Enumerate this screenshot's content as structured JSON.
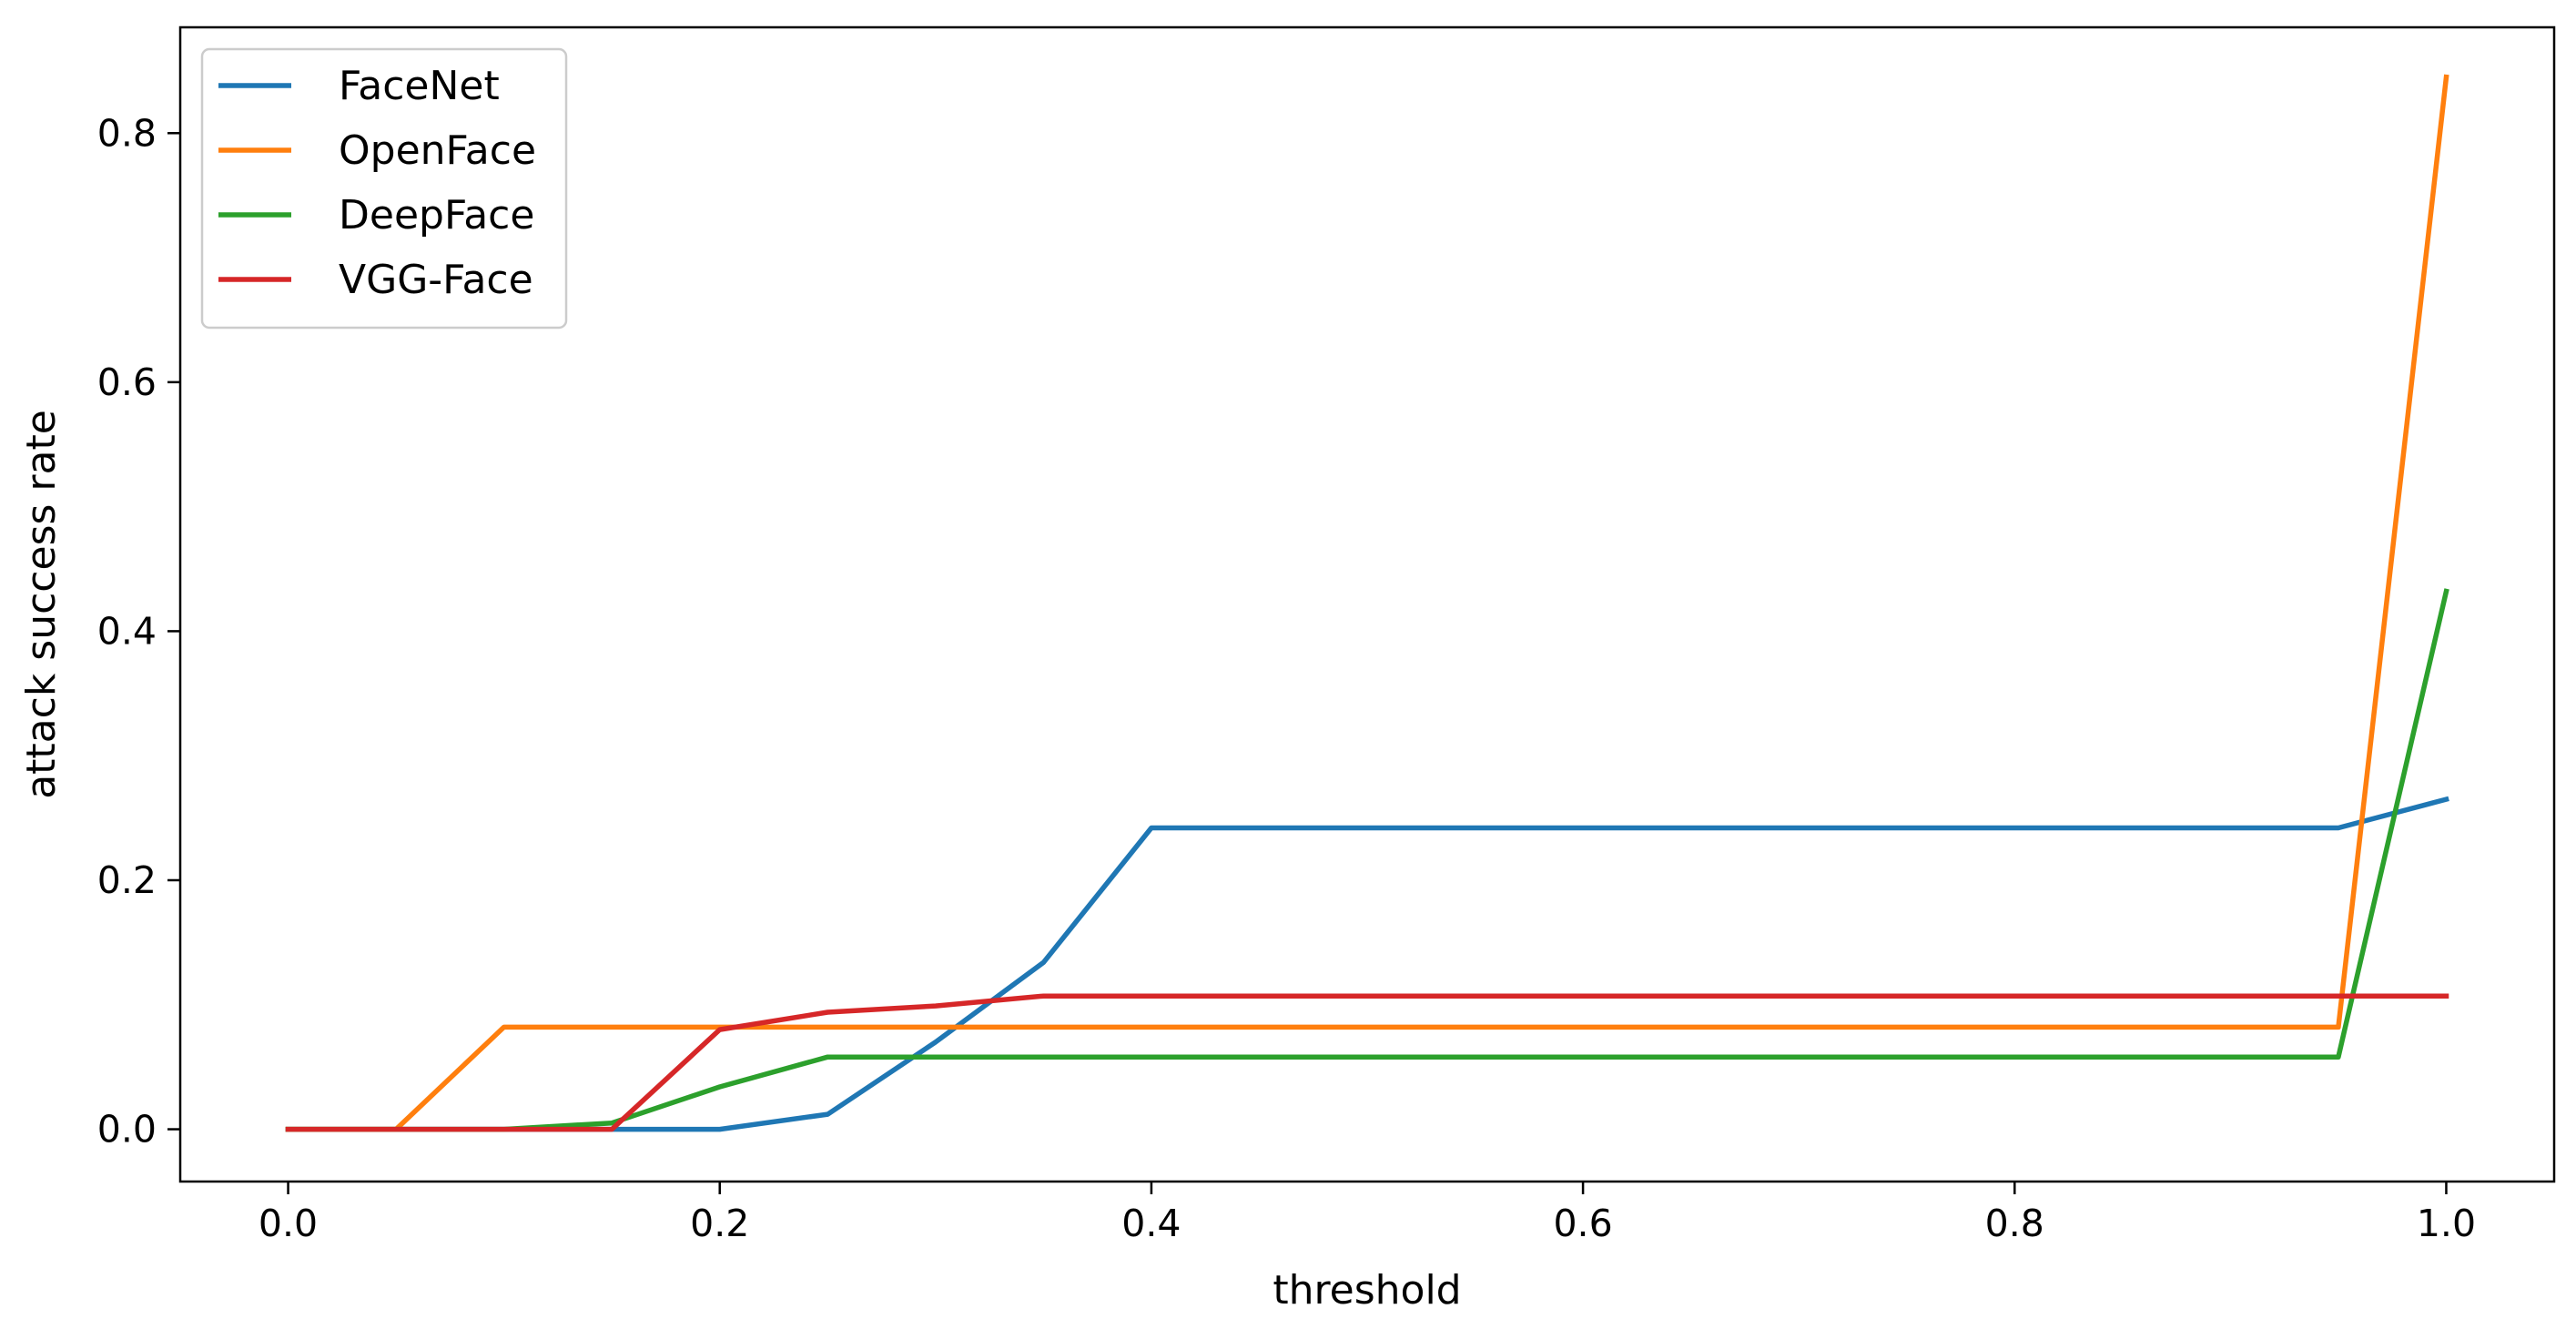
{
  "chart_data": {
    "type": "line",
    "xlabel": "threshold",
    "ylabel": "attack success rate",
    "title": "",
    "xlim": [
      -0.05,
      1.05
    ],
    "ylim": [
      -0.042,
      0.885
    ],
    "xticks": [
      0.0,
      0.2,
      0.4,
      0.6,
      0.8,
      1.0
    ],
    "xtick_labels": [
      "0.0",
      "0.2",
      "0.4",
      "0.6",
      "0.8",
      "1.0"
    ],
    "yticks": [
      0.0,
      0.2,
      0.4,
      0.6,
      0.8
    ],
    "ytick_labels": [
      "0.0",
      "0.2",
      "0.4",
      "0.6",
      "0.8"
    ],
    "grid": false,
    "legend_position": "top-left",
    "x": [
      0.0,
      0.05,
      0.1,
      0.15,
      0.2,
      0.25,
      0.3,
      0.35,
      0.4,
      0.45,
      0.5,
      0.55,
      0.6,
      0.65,
      0.7,
      0.75,
      0.8,
      0.85,
      0.9,
      0.95,
      1.0
    ],
    "series": [
      {
        "name": "FaceNet",
        "color": "#1f77b4",
        "values": [
          0.0,
          0.0,
          0.0,
          0.0,
          0.0,
          0.012,
          0.07,
          0.134,
          0.242,
          0.242,
          0.242,
          0.242,
          0.242,
          0.242,
          0.242,
          0.242,
          0.242,
          0.242,
          0.242,
          0.242,
          0.265
        ]
      },
      {
        "name": "OpenFace",
        "color": "#ff7f0e",
        "values": [
          0.0,
          0.0,
          0.082,
          0.082,
          0.082,
          0.082,
          0.082,
          0.082,
          0.082,
          0.082,
          0.082,
          0.082,
          0.082,
          0.082,
          0.082,
          0.082,
          0.082,
          0.082,
          0.082,
          0.082,
          0.845
        ]
      },
      {
        "name": "DeepFace",
        "color": "#2ca02c",
        "values": [
          0.0,
          0.0,
          0.0,
          0.005,
          0.034,
          0.058,
          0.058,
          0.058,
          0.058,
          0.058,
          0.058,
          0.058,
          0.058,
          0.058,
          0.058,
          0.058,
          0.058,
          0.058,
          0.058,
          0.058,
          0.432
        ]
      },
      {
        "name": "VGG-Face",
        "color": "#d62728",
        "values": [
          0.0,
          0.0,
          0.0,
          0.0,
          0.08,
          0.094,
          0.099,
          0.107,
          0.107,
          0.107,
          0.107,
          0.107,
          0.107,
          0.107,
          0.107,
          0.107,
          0.107,
          0.107,
          0.107,
          0.107,
          0.107
        ]
      }
    ]
  }
}
